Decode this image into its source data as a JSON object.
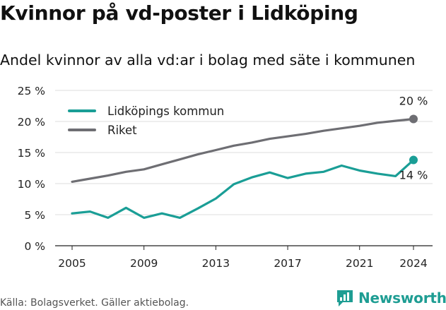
{
  "title": "Kvinnor på vd-poster i Lidköping",
  "subtitle": "Andel kvinnor av alla vd:ar i bolag med säte i kommunen",
  "source": "Källa: Bolagsverket. Gäller aktiebolag.",
  "brand": {
    "name": "Newsworthy",
    "icon": "newsworthy-logo-icon",
    "color": "#1e9d93"
  },
  "chart_data": {
    "type": "line",
    "x": [
      2005,
      2006,
      2007,
      2008,
      2009,
      2010,
      2011,
      2012,
      2013,
      2014,
      2015,
      2016,
      2017,
      2018,
      2019,
      2020,
      2021,
      2022,
      2023,
      2024
    ],
    "series": [
      {
        "name": "Lidköpings kommun",
        "color": "#1a9e96",
        "values": [
          5.2,
          5.5,
          4.5,
          6.1,
          4.5,
          5.2,
          4.5,
          6.0,
          7.6,
          9.9,
          11.0,
          11.8,
          10.9,
          11.6,
          11.9,
          12.9,
          12.1,
          11.6,
          11.2,
          13.8
        ],
        "end_label": "14 %"
      },
      {
        "name": "Riket",
        "color": "#6e6e73",
        "values": [
          10.3,
          10.8,
          11.3,
          11.9,
          12.3,
          13.1,
          13.9,
          14.7,
          15.4,
          16.1,
          16.6,
          17.2,
          17.6,
          18.0,
          18.5,
          18.9,
          19.3,
          19.8,
          20.1,
          20.4
        ],
        "end_label": "20 %"
      }
    ],
    "y_ticks": [
      "0 %",
      "5 %",
      "10 %",
      "15 %",
      "20 %",
      "25 %"
    ],
    "y_tick_values": [
      0,
      5,
      10,
      15,
      20,
      25
    ],
    "x_ticks": [
      "2005",
      "2009",
      "2013",
      "2017",
      "2021",
      "2024"
    ],
    "x_tick_values": [
      2005,
      2009,
      2013,
      2017,
      2021,
      2024
    ],
    "ylim": [
      0,
      25
    ],
    "xlim": [
      2005,
      2024
    ],
    "grid": "horizontal",
    "legend_position": "top-left"
  }
}
